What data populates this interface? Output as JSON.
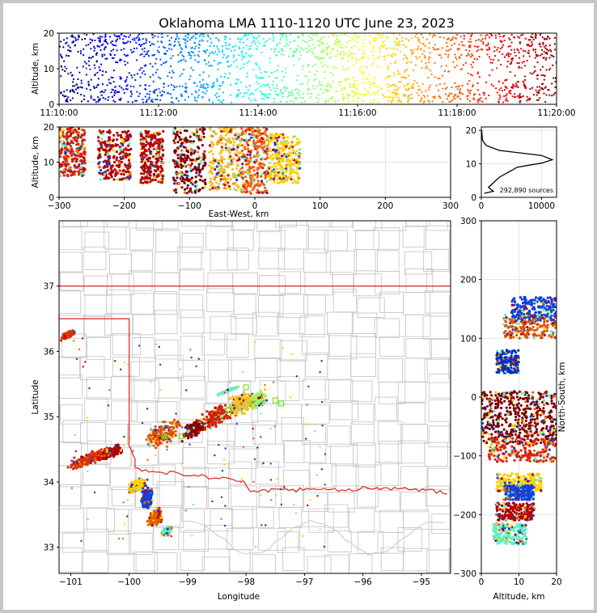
{
  "figure": {
    "title": "Oklahoma LMA 1110-1120 UTC June 23, 2023",
    "source_count_label": "292,890 sources"
  },
  "chart_data": [
    {
      "panel": "time-height",
      "type": "scatter",
      "ylabel": "Altitude, km",
      "xlim": [
        "11:10:00",
        "11:20:00"
      ],
      "ylim": [
        0,
        20
      ],
      "x_ticks": [
        "11:10:00",
        "11:12:00",
        "11:14:00",
        "11:16:00",
        "11:18:00",
        "11:20:00"
      ],
      "y_ticks": [
        0,
        10,
        20
      ],
      "color_encoding": "time (jet colormap, blue = 11:10, dark red = 11:20)",
      "bands": [
        {
          "altitude_km": [
            0.5,
            6
          ],
          "density": "dense"
        },
        {
          "altitude_km": [
            13,
            20
          ],
          "density": "dense"
        }
      ],
      "grid": true
    },
    {
      "panel": "east-west-height",
      "type": "scatter",
      "xlabel": "East-West, km",
      "ylabel": "Altitude, km",
      "xlim": [
        -300,
        300
      ],
      "ylim": [
        0,
        20
      ],
      "x_ticks": [
        -300,
        -200,
        -100,
        0,
        100,
        200,
        300
      ],
      "y_ticks": [
        0,
        10,
        20
      ],
      "grid": true,
      "clusters": [
        {
          "x_range": [
            -300,
            -260
          ],
          "altitude_km": [
            6,
            20
          ],
          "color": "#d81e05"
        },
        {
          "x_range": [
            -240,
            -190
          ],
          "altitude_km": [
            5,
            19
          ],
          "color": "#b40000"
        },
        {
          "x_range": [
            -175,
            -140
          ],
          "altitude_km": [
            4,
            19
          ],
          "color": "#b40000"
        },
        {
          "x_range": [
            -125,
            -75
          ],
          "altitude_km": [
            1,
            20
          ],
          "color": "#7a0000"
        },
        {
          "x_range": [
            -70,
            -20
          ],
          "altitude_km": [
            2,
            20
          ],
          "color": "#f0c030"
        },
        {
          "x_range": [
            -20,
            20
          ],
          "altitude_km": [
            1,
            20
          ],
          "color": "#f06010"
        },
        {
          "x_range": [
            20,
            70
          ],
          "altitude_km": [
            4,
            18
          ],
          "color": "#ffd000"
        }
      ]
    },
    {
      "panel": "altitude-histogram",
      "type": "line",
      "xlim": [
        0,
        12500
      ],
      "ylim": [
        0,
        21
      ],
      "x_ticks": [
        0,
        10000
      ],
      "y_ticks": [
        0,
        10,
        20
      ],
      "x": [
        500,
        2000,
        1200,
        3000,
        6000,
        10000,
        11800,
        10000,
        3000,
        800,
        200,
        50
      ],
      "y": [
        1.2,
        1.8,
        3,
        6,
        9,
        10.2,
        11.2,
        12.5,
        14,
        15.5,
        17,
        20
      ]
    },
    {
      "panel": "plan-view",
      "type": "scatter",
      "xlabel": "Longitude",
      "ylabel": "Latitude",
      "xlim": [
        -101.2,
        -94.5
      ],
      "ylim": [
        32.6,
        38
      ],
      "x_ticks": [
        -101,
        -100,
        -99,
        -98,
        -97,
        -96,
        -95
      ],
      "y_ticks": [
        33,
        34,
        35,
        36,
        37
      ],
      "clusters": [
        {
          "lon": -100.7,
          "lat": 34.35,
          "spread": [
            0.45,
            0.12
          ],
          "color": "#e03000"
        },
        {
          "lon": -100.3,
          "lat": 34.45,
          "spread": [
            0.25,
            0.1
          ],
          "color": "#b40000"
        },
        {
          "lon": -99.4,
          "lat": 34.75,
          "spread": [
            0.4,
            0.25
          ],
          "color": "#e65000"
        },
        {
          "lon": -98.9,
          "lat": 34.8,
          "spread": [
            0.25,
            0.15
          ],
          "color": "#8a0000"
        },
        {
          "lon": -98.5,
          "lat": 35.0,
          "spread": [
            0.35,
            0.2
          ],
          "color": "#d82000"
        },
        {
          "lon": -98.1,
          "lat": 35.2,
          "spread": [
            0.3,
            0.2
          ],
          "color": "#f0c020"
        },
        {
          "lon": -97.8,
          "lat": 35.25,
          "spread": [
            0.2,
            0.15
          ],
          "color": "#a0f060"
        },
        {
          "lon": -99.85,
          "lat": 33.95,
          "spread": [
            0.2,
            0.12
          ],
          "color": "#ffd000"
        },
        {
          "lon": -99.7,
          "lat": 33.75,
          "spread": [
            0.12,
            0.2
          ],
          "color": "#1040e0"
        },
        {
          "lon": -99.55,
          "lat": 33.45,
          "spread": [
            0.15,
            0.15
          ],
          "color": "#e06000"
        },
        {
          "lon": -99.35,
          "lat": 33.25,
          "spread": [
            0.12,
            0.08
          ],
          "color": "#60f0c0"
        },
        {
          "lon": -101.05,
          "lat": 36.25,
          "spread": [
            0.15,
            0.06
          ],
          "color": "#e03000"
        },
        {
          "lon": -98.3,
          "lat": 35.4,
          "spread": [
            0.2,
            0.02
          ],
          "color": "#60f0e0"
        }
      ],
      "state_border_color": "#e02020",
      "county_line_color": "#c8c8c8"
    },
    {
      "panel": "north-south-height",
      "type": "scatter",
      "xlabel": "Altitude, km",
      "ylabel": "North-South, km",
      "xlim": [
        0,
        20
      ],
      "ylim": [
        -300,
        300
      ],
      "x_ticks": [
        0,
        10,
        20
      ],
      "y_ticks": [
        -300,
        -200,
        -100,
        0,
        100,
        200,
        300
      ],
      "grid": true,
      "clusters": [
        {
          "y_range": [
            100,
            140
          ],
          "altitude_km": [
            6,
            20
          ],
          "color": "#e05000"
        },
        {
          "y_range": [
            130,
            170
          ],
          "altitude_km": [
            8,
            20
          ],
          "color": "#1040e0"
        },
        {
          "y_range": [
            -80,
            10
          ],
          "altitude_km": [
            0,
            20
          ],
          "color": "#7a0000"
        },
        {
          "y_range": [
            -110,
            -70
          ],
          "altitude_km": [
            2,
            20
          ],
          "color": "#e02000"
        },
        {
          "y_range": [
            -160,
            -130
          ],
          "altitude_km": [
            4,
            16
          ],
          "color": "#ffd000"
        },
        {
          "y_range": [
            -175,
            -150
          ],
          "altitude_km": [
            6,
            14
          ],
          "color": "#1040e0"
        },
        {
          "y_range": [
            -210,
            -180
          ],
          "altitude_km": [
            4,
            14
          ],
          "color": "#b00000"
        },
        {
          "y_range": [
            -250,
            -215
          ],
          "altitude_km": [
            3,
            12
          ],
          "color": "#60f0c0"
        },
        {
          "y_range": [
            40,
            80
          ],
          "altitude_km": [
            4,
            10
          ],
          "color": "#0030c0"
        }
      ]
    }
  ]
}
